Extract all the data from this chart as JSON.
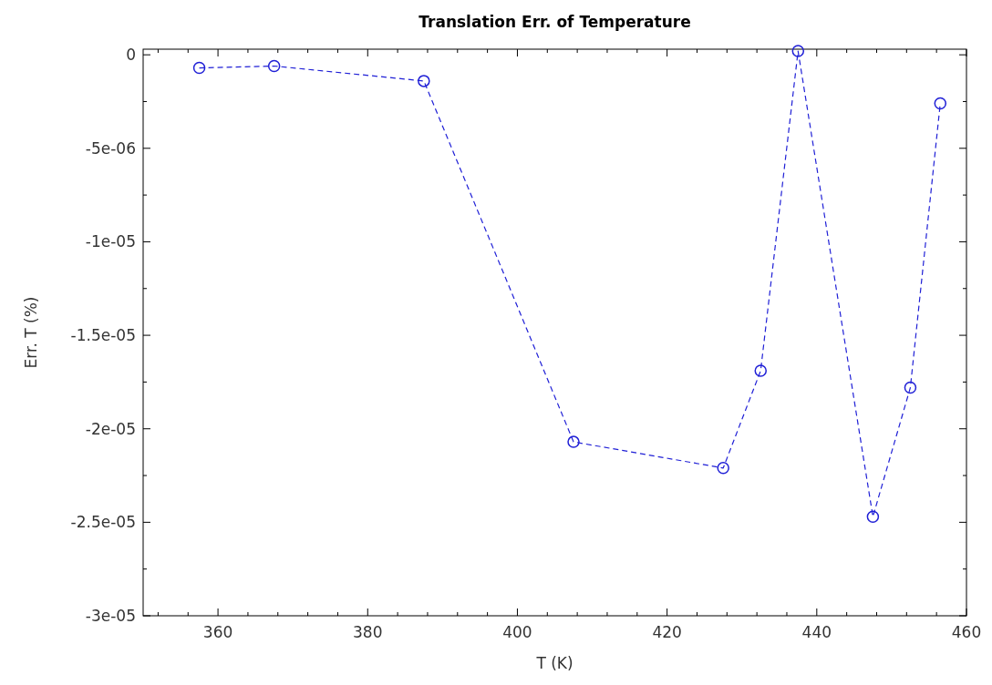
{
  "chart_data": {
    "type": "line",
    "title": "Translation Err. of Temperature",
    "xlabel": "T (K)",
    "ylabel": "Err. T (%)",
    "x": [
      357.5,
      367.5,
      387.5,
      407.5,
      427.5,
      432.5,
      437.5,
      447.5,
      452.5,
      456.5
    ],
    "series": [
      {
        "color": "#1f1fd6",
        "values": [
          -7e-07,
          -6e-07,
          -1.4e-06,
          -2.07e-05,
          -2.21e-05,
          -1.69e-05,
          2e-07,
          -2.47e-05,
          -1.78e-05,
          -2.6e-06
        ]
      }
    ],
    "xlim": [
      350,
      460
    ],
    "xticks": [
      {
        "value": 352,
        "label": null
      },
      {
        "value": 356,
        "label": null
      },
      360,
      {
        "value": 364,
        "label": null
      },
      {
        "value": 368,
        "label": null
      },
      {
        "value": 372,
        "label": null
      },
      {
        "value": 376,
        "label": null
      },
      380,
      {
        "value": 384,
        "label": null
      },
      {
        "value": 388,
        "label": null
      },
      {
        "value": 392,
        "label": null
      },
      {
        "value": 396,
        "label": null
      },
      400,
      {
        "value": 404,
        "label": null
      },
      {
        "value": 408,
        "label": null
      },
      {
        "value": 412,
        "label": null
      },
      {
        "value": 416,
        "label": null
      },
      420,
      {
        "value": 424,
        "label": null
      },
      {
        "value": 428,
        "label": null
      },
      {
        "value": 432,
        "label": null
      },
      {
        "value": 436,
        "label": null
      },
      440,
      {
        "value": 444,
        "label": null
      },
      {
        "value": 448,
        "label": null
      },
      {
        "value": 452,
        "label": null
      },
      {
        "value": 456,
        "label": null
      },
      460
    ],
    "ylim": [
      -3e-05,
      3e-07
    ],
    "yticks": [
      {
        "value": -3e-05,
        "label": "-3e-05"
      },
      {
        "value": -2.75e-05,
        "label": null
      },
      {
        "value": -2.5e-05,
        "label": "-2.5e-05"
      },
      {
        "value": -2.25e-05,
        "label": null
      },
      {
        "value": -2e-05,
        "label": "-2e-05"
      },
      {
        "value": -1.75e-05,
        "label": null
      },
      {
        "value": -1.5e-05,
        "label": "-1.5e-05"
      },
      {
        "value": -1.25e-05,
        "label": null
      },
      {
        "value": -1e-05,
        "label": "-1e-05"
      },
      {
        "value": -7.5e-06,
        "label": null
      },
      {
        "value": -5e-06,
        "label": "-5e-06"
      },
      {
        "value": -2.5e-06,
        "label": null
      },
      0
    ],
    "marker": "circle",
    "line_style": "dashed"
  }
}
